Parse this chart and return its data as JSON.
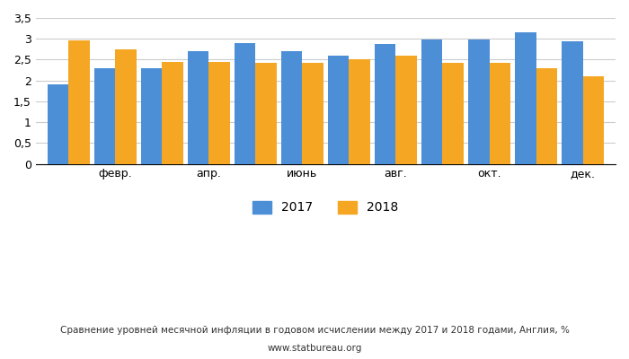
{
  "values_2017": [
    1.9,
    2.3,
    2.3,
    2.7,
    2.9,
    2.7,
    2.6,
    2.88,
    2.98,
    2.98,
    3.15,
    2.95
  ],
  "values_2018": [
    2.97,
    2.75,
    2.45,
    2.45,
    2.43,
    2.43,
    2.52,
    2.6,
    2.42,
    2.42,
    2.3,
    2.1
  ],
  "color_2017": "#4d8fd6",
  "color_2018": "#f5a623",
  "ylim": [
    0,
    3.5
  ],
  "yticks": [
    0,
    0.5,
    1.0,
    1.5,
    2.0,
    2.5,
    3.0,
    3.5
  ],
  "ytick_labels": [
    "0",
    "0,5",
    "1",
    "1,5",
    "2",
    "2,5",
    "3",
    "3,5"
  ],
  "title_line1": "Сравнение уровней месячной инфляции в годовом исчислении между 2017 и 2018 годами, Англия, %",
  "title_line2": "www.statbureau.org",
  "legend_2017": "2017",
  "legend_2018": "2018",
  "background_color": "#ffffff",
  "x_tick_positions": [
    1,
    3,
    5,
    7,
    9,
    11
  ],
  "x_tick_labels_display": [
    "февр.",
    "апр.",
    "июнь",
    "авг.",
    "окт.",
    "дек."
  ]
}
